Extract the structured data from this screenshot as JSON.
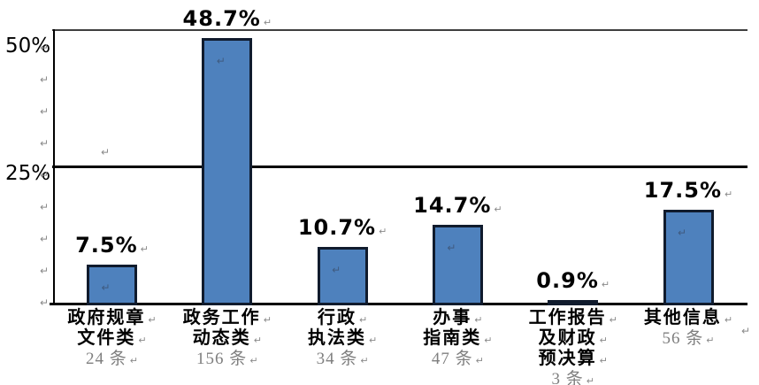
{
  "chart_data": {
    "type": "bar",
    "categories": [
      "政府规章文件类",
      "政务工作动态类",
      "行政执法类",
      "办事指南类",
      "工作报告及财政预决算",
      "其他信息"
    ],
    "category_label_lines": [
      [
        "政府规章",
        "文件类"
      ],
      [
        "政务工作",
        "动态类"
      ],
      [
        "行政",
        "执法类"
      ],
      [
        "办事",
        "指南类"
      ],
      [
        "工作报告",
        "及财政",
        "预决算"
      ],
      [
        "其他信息"
      ]
    ],
    "counts": [
      "24 条",
      "156 条",
      "34 条",
      "47 条",
      "3 条",
      "56 条"
    ],
    "values": [
      7.5,
      48.7,
      10.7,
      14.7,
      0.9,
      17.5
    ],
    "value_labels": [
      "7.5%",
      "48.7%",
      "10.7%",
      "14.7%",
      "0.9%",
      "17.5%"
    ],
    "ylim": [
      0,
      50
    ],
    "y_ticks": [
      {
        "value": 50,
        "label": "50%"
      },
      {
        "value": 25,
        "label": "25%"
      }
    ],
    "gridlines_at": [
      25,
      50
    ],
    "legend": "none",
    "colors": {
      "bar_fill": "#4e81bd",
      "bar_border": "#101b2d",
      "grid50": "#3f3f3f",
      "grid25": "#000000",
      "axis": "#000000",
      "value_label_text": "#000000",
      "category_text": "#000000",
      "count_text": "#7f7f7f",
      "return_mark": "#8a8a8a"
    }
  },
  "formatting_marks": {
    "glyph": "↵"
  }
}
